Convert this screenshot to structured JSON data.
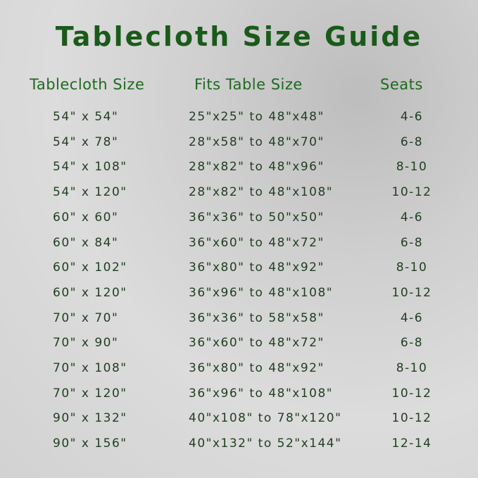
{
  "title": "Tablecloth Size Guide",
  "headers": {
    "size": "Tablecloth Size",
    "fits": "Fits Table Size",
    "seats": "Seats"
  },
  "colors": {
    "title": "#1a5a1a",
    "header": "#1e6a1e",
    "text": "#213f21"
  },
  "rows": [
    {
      "size": "54\" x 54\"",
      "fits": "25\"x25\" to 48\"x48\"",
      "seats": "4-6"
    },
    {
      "size": "54\" x 78\"",
      "fits": "28\"x58\" to 48\"x70\"",
      "seats": "6-8"
    },
    {
      "size": "54\" x 108\"",
      "fits": "28\"x82\" to 48\"x96\"",
      "seats": "8-10"
    },
    {
      "size": "54\" x 120\"",
      "fits": "28\"x82\" to 48\"x108\"",
      "seats": "10-12"
    },
    {
      "size": "60\" x 60\"",
      "fits": "36\"x36\" to 50\"x50\"",
      "seats": "4-6"
    },
    {
      "size": "60\" x 84\"",
      "fits": "36\"x60\" to 48\"x72\"",
      "seats": "6-8"
    },
    {
      "size": "60\" x 102\"",
      "fits": "36\"x80\" to 48\"x92\"",
      "seats": "8-10"
    },
    {
      "size": "60\" x 120\"",
      "fits": "36\"x96\" to 48\"x108\"",
      "seats": "10-12"
    },
    {
      "size": "70\" x 70\"",
      "fits": "36\"x36\" to 58\"x58\"",
      "seats": "4-6"
    },
    {
      "size": "70\" x 90\"",
      "fits": "36\"x60\" to 48\"x72\"",
      "seats": "6-8"
    },
    {
      "size": "70\" x 108\"",
      "fits": "36\"x80\" to 48\"x92\"",
      "seats": "8-10"
    },
    {
      "size": "70\" x 120\"",
      "fits": "36\"x96\" to 48\"x108\"",
      "seats": "10-12"
    },
    {
      "size": "90\" x 132\"",
      "fits": "40\"x108\" to 78\"x120\"",
      "seats": "10-12"
    },
    {
      "size": "90\" x 156\"",
      "fits": "40\"x132\" to 52\"x144\"",
      "seats": "12-14"
    }
  ]
}
